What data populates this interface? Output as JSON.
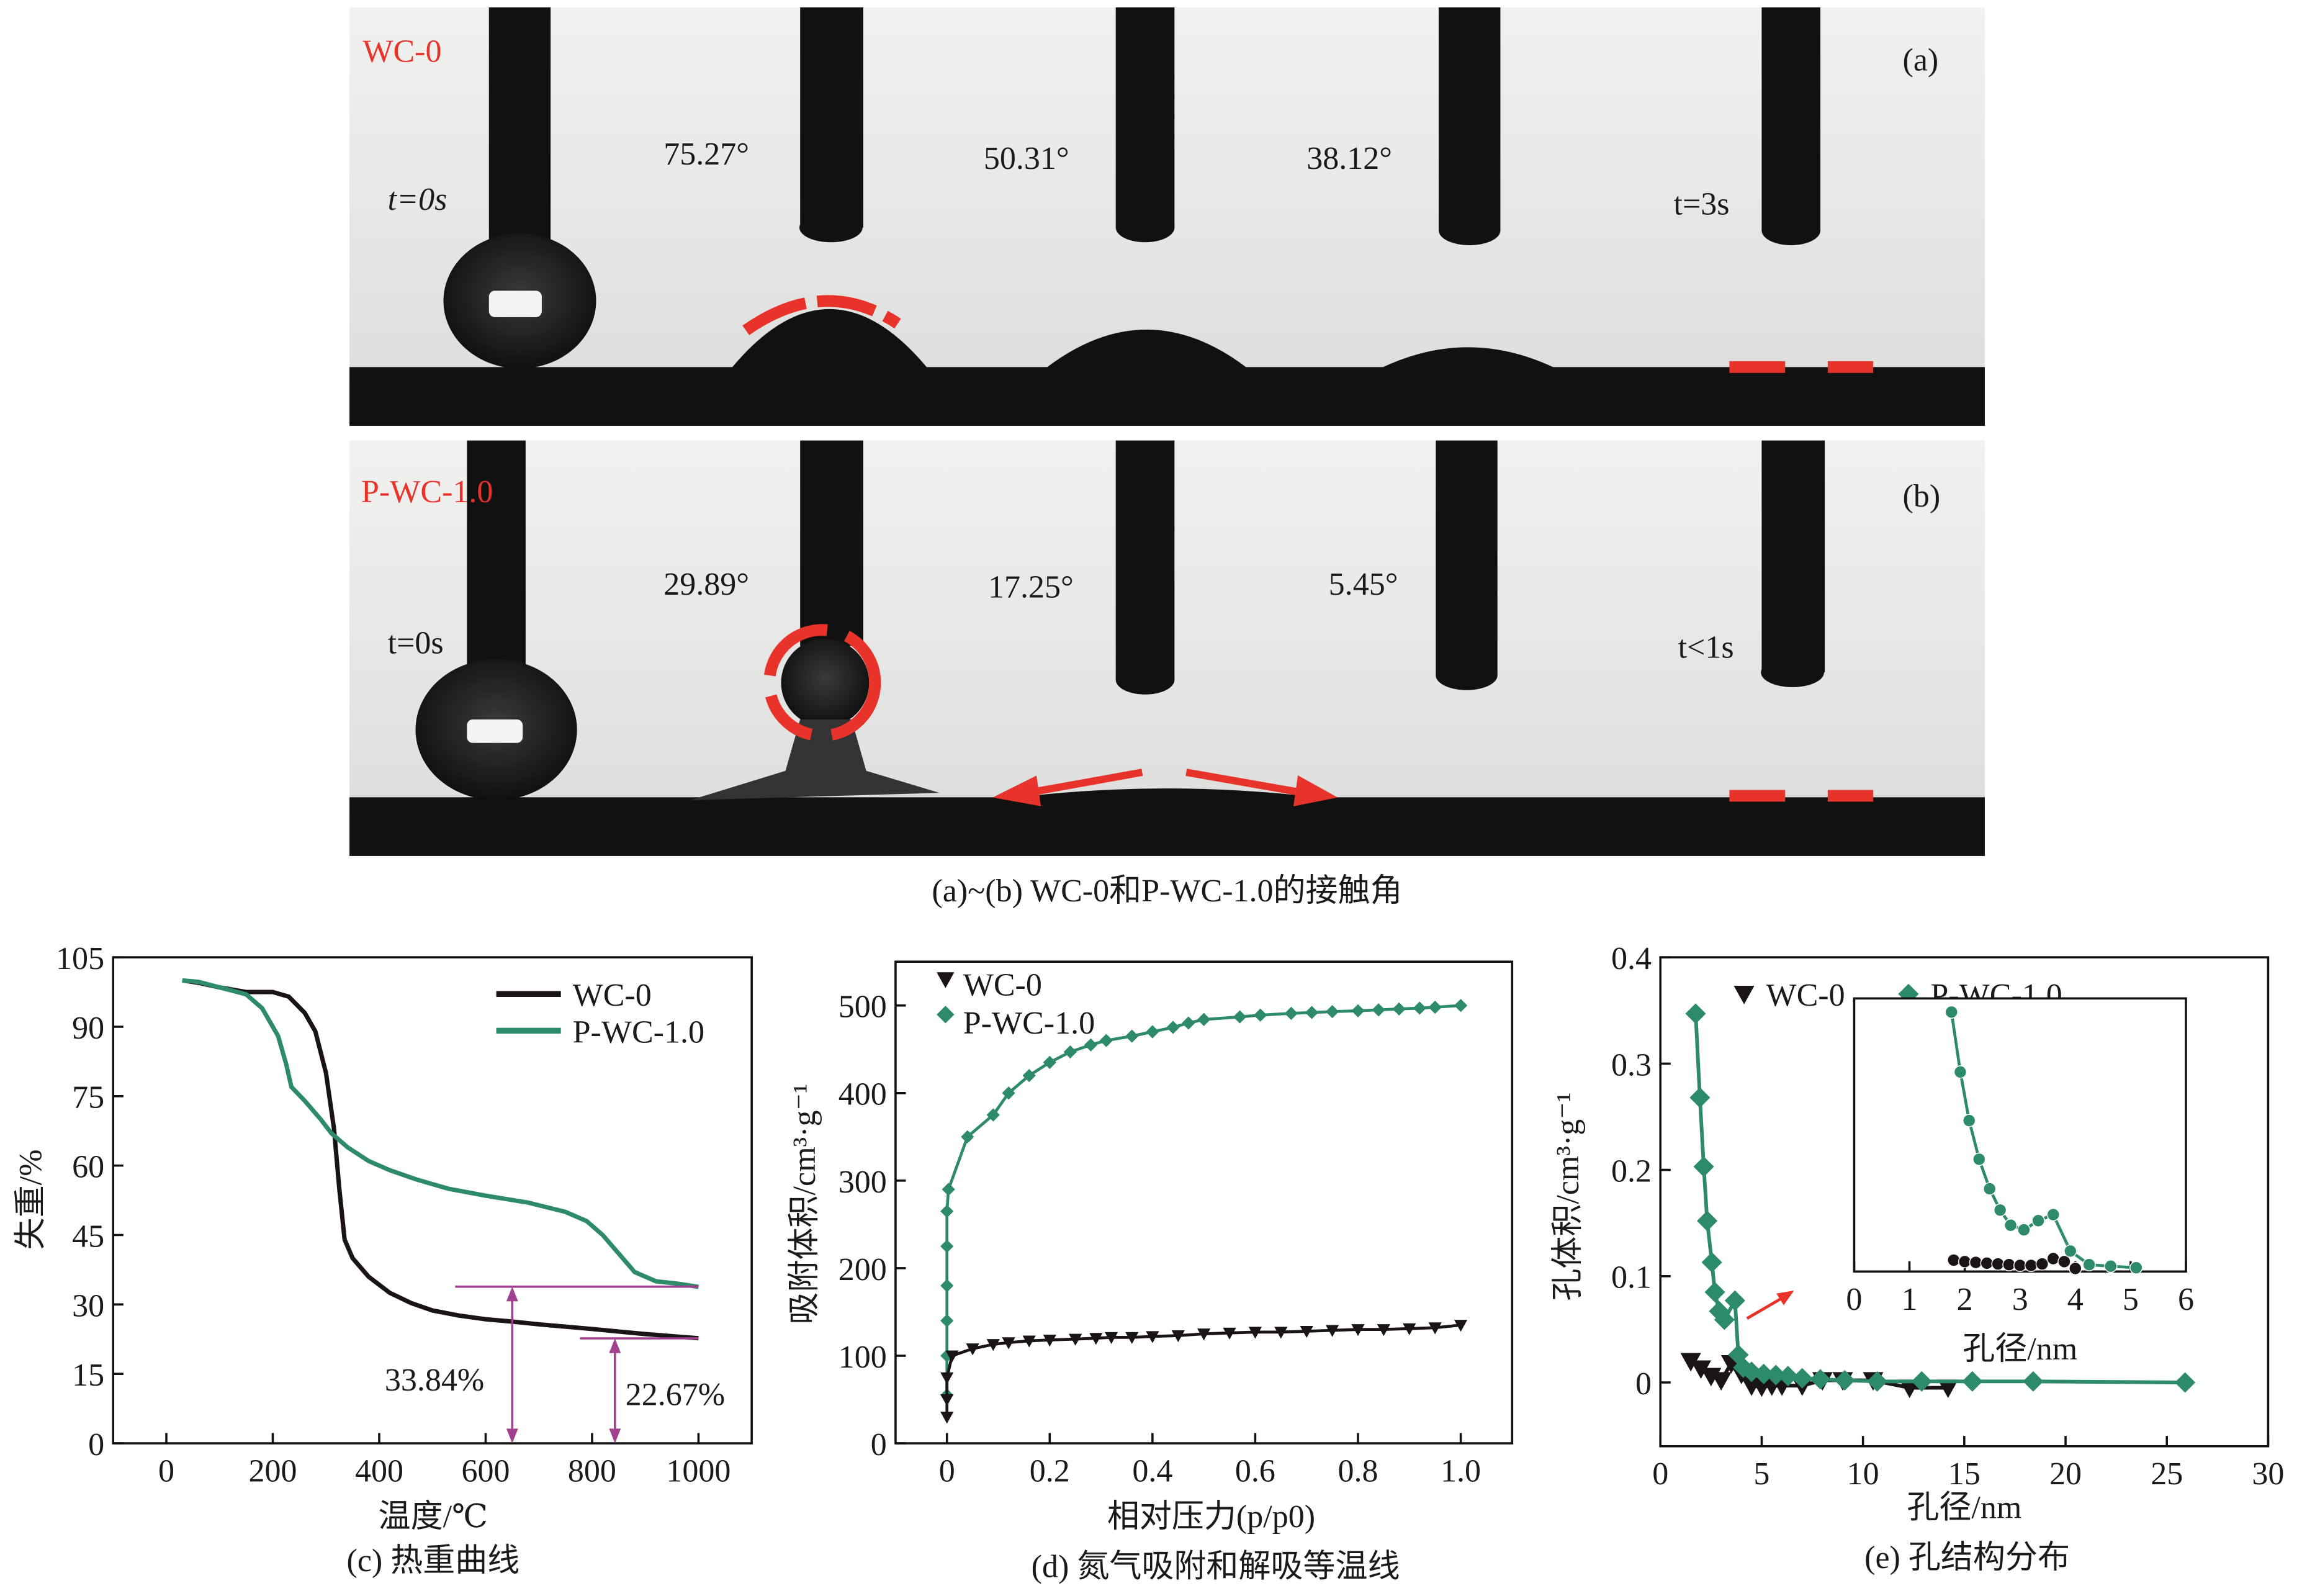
{
  "colors": {
    "wc0": "#1a1414",
    "pwc": "#2e8b6a",
    "annot": "#a0418f",
    "red": "#e8332a"
  },
  "photos": {
    "a": {
      "sample": "WC-0",
      "panel": "(a)",
      "t_start": "t=0s",
      "t_end": "t=3s",
      "angles": [
        "75.27°",
        "50.31°",
        "38.12°"
      ]
    },
    "b": {
      "sample": "P-WC-1.0",
      "panel": "(b)",
      "t_start": "t=0s",
      "t_end": "t<1s",
      "angles": [
        "29.89°",
        "17.25°",
        "5.45°"
      ]
    },
    "caption": "(a)~(b) WC-0和P-WC-1.0的接触角"
  },
  "chart_data": [
    {
      "id": "c",
      "type": "line",
      "caption": "(c) 热重曲线",
      "xlabel": "温度/℃",
      "ylabel": "失重/%",
      "xlim": [
        -100,
        1100
      ],
      "ylim": [
        0,
        105
      ],
      "xticks": [
        0,
        200,
        400,
        600,
        800,
        1000
      ],
      "yticks": [
        0,
        15,
        30,
        45,
        60,
        75,
        90,
        105
      ],
      "legend": "top-right",
      "series": [
        {
          "name": "WC-0",
          "color": "#1a1414",
          "marker": "none",
          "x": [
            30,
            60,
            100,
            150,
            200,
            230,
            260,
            280,
            300,
            315,
            325,
            335,
            350,
            380,
            420,
            460,
            500,
            550,
            600,
            650,
            700,
            800,
            900,
            1000
          ],
          "y": [
            100,
            99.5,
            98.5,
            97.5,
            97.5,
            96.5,
            93,
            89,
            80,
            68,
            55,
            44,
            40,
            36,
            32.5,
            30.3,
            28.7,
            27.6,
            26.8,
            26.3,
            25.7,
            24.7,
            23.6,
            22.7
          ]
        },
        {
          "name": "P-WC-1.0",
          "color": "#2e8b6a",
          "marker": "none",
          "x": [
            30,
            60,
            100,
            150,
            180,
            210,
            225,
            235,
            260,
            290,
            310,
            340,
            380,
            420,
            470,
            530,
            600,
            680,
            750,
            790,
            820,
            850,
            880,
            920,
            960,
            1000
          ],
          "y": [
            100,
            99.7,
            98.5,
            97,
            94,
            88,
            82,
            77,
            74,
            70,
            67,
            64,
            61,
            59,
            57,
            55,
            53.5,
            52,
            50,
            48,
            45,
            41,
            37,
            35,
            34.5,
            33.8
          ]
        }
      ],
      "annotations": [
        {
          "text": "33.84%",
          "value": 33.84,
          "arrow_x": 650
        },
        {
          "text": "22.67%",
          "value": 22.67,
          "arrow_x": 843
        }
      ]
    },
    {
      "id": "d",
      "type": "scatter",
      "caption": "(d) 氮气吸附和解吸等温线",
      "xlabel": "相对压力(p/p0)",
      "ylabel": "吸附体积/cm³·g⁻¹",
      "xlim": [
        -0.1,
        1.1
      ],
      "ylim": [
        0,
        550
      ],
      "xticks": [
        0,
        0.2,
        0.4,
        0.6,
        0.8,
        1.0
      ],
      "xticklabels": [
        "0",
        "0.2",
        "0.4",
        "0.6",
        "0.8",
        "1.0"
      ],
      "yticks": [
        0,
        100,
        200,
        300,
        400,
        500
      ],
      "legend": "top-left",
      "series": [
        {
          "name": "WC-0",
          "color": "#1a1414",
          "marker": "triangle-down",
          "x": [
            0,
            0,
            0,
            0.01,
            0.05,
            0.09,
            0.12,
            0.16,
            0.2,
            0.25,
            0.29,
            0.32,
            0.36,
            0.4,
            0.45,
            0.5,
            0.55,
            0.6,
            0.65,
            0.7,
            0.75,
            0.8,
            0.85,
            0.9,
            0.95,
            1.0
          ],
          "y": [
            30,
            50,
            75,
            100,
            108,
            113,
            115,
            117,
            118,
            119,
            120,
            121,
            121,
            122,
            123,
            125,
            126,
            127,
            127,
            128,
            129,
            130,
            130,
            131,
            132,
            135
          ]
        },
        {
          "name": "P-WC-1.0",
          "color": "#2e8b6a",
          "marker": "diamond",
          "x": [
            0,
            0,
            0,
            0,
            0,
            0,
            0.003,
            0.04,
            0.09,
            0.12,
            0.16,
            0.2,
            0.24,
            0.28,
            0.31,
            0.36,
            0.4,
            0.44,
            0.47,
            0.5,
            0.57,
            0.61,
            0.67,
            0.71,
            0.75,
            0.8,
            0.84,
            0.88,
            0.92,
            0.95,
            1.0
          ],
          "y": [
            55,
            100,
            140,
            180,
            225,
            265,
            290,
            350,
            375,
            400,
            420,
            435,
            447,
            455,
            460,
            465,
            470,
            475,
            480,
            484,
            487,
            489,
            491,
            492,
            493,
            494,
            495,
            496,
            497,
            498,
            500
          ]
        }
      ]
    },
    {
      "id": "e",
      "type": "scatter",
      "caption": "(e) 孔结构分布",
      "xlabel": "孔径/nm",
      "ylabel": "孔体积/cm³·g⁻¹",
      "xlim": [
        0,
        30
      ],
      "ylim": [
        -0.06,
        0.4
      ],
      "xticks": [
        0,
        5,
        10,
        15,
        20,
        25,
        30
      ],
      "yticks": [
        0,
        0.1,
        0.2,
        0.3,
        0.4
      ],
      "legend": "top",
      "series": [
        {
          "name": "WC-0",
          "color": "#1a1414",
          "marker": "triangle-down",
          "x": [
            1.5,
            2,
            2.5,
            3,
            3.5,
            4,
            4.5,
            5,
            5.5,
            6,
            7,
            8,
            9,
            10.5,
            12.3,
            14.2
          ],
          "y": [
            0.02,
            0.013,
            0.006,
            0.002,
            0.018,
            0.008,
            -0.003,
            -0.004,
            -0.003,
            -0.003,
            -0.003,
            0.002,
            0.002,
            0.002,
            -0.005,
            -0.005
          ]
        },
        {
          "name": "P-WC-1.0",
          "color": "#2e8b6a",
          "marker": "diamond",
          "x": [
            1.74,
            1.95,
            2.14,
            2.31,
            2.54,
            2.69,
            2.9,
            3.16,
            3.68,
            3.85,
            4.09,
            4.5,
            5.1,
            5.7,
            6.3,
            7.0,
            7.9,
            9.1,
            10.7,
            12.9,
            15.4,
            18.4,
            25.9
          ],
          "y": [
            0.347,
            0.268,
            0.203,
            0.152,
            0.113,
            0.085,
            0.067,
            0.059,
            0.077,
            0.026,
            0.014,
            0.01,
            0.008,
            0.007,
            0.006,
            0.004,
            0.003,
            0.002,
            0.001,
            0.001,
            0.001,
            0.001,
            0.0
          ]
        }
      ],
      "inset": {
        "xlabel": "孔径/nm",
        "xlim": [
          0,
          6
        ],
        "ylim": [
          0,
          0.36
        ],
        "xticks": [
          0,
          1,
          2,
          3,
          4,
          5,
          6
        ],
        "series": [
          {
            "name": "WC-0",
            "color": "#1a1414",
            "marker": "circle",
            "x": [
              1.8,
              2.0,
              2.2,
              2.4,
              2.6,
              2.8,
              3.0,
              3.2,
              3.4,
              3.6,
              3.8,
              4.0
            ],
            "y": [
              0.015,
              0.013,
              0.012,
              0.011,
              0.01,
              0.009,
              0.008,
              0.008,
              0.01,
              0.017,
              0.013,
              0.004
            ]
          },
          {
            "name": "P-WC-1.0",
            "color": "#2e8b6a",
            "marker": "circle",
            "x": [
              1.76,
              1.92,
              2.08,
              2.26,
              2.45,
              2.64,
              2.83,
              3.07,
              3.33,
              3.6,
              3.91,
              4.25,
              4.64,
              5.1
            ],
            "y": [
              0.342,
              0.263,
              0.199,
              0.148,
              0.109,
              0.081,
              0.061,
              0.055,
              0.067,
              0.075,
              0.027,
              0.009,
              0.007,
              0.005
            ]
          }
        ]
      }
    }
  ]
}
